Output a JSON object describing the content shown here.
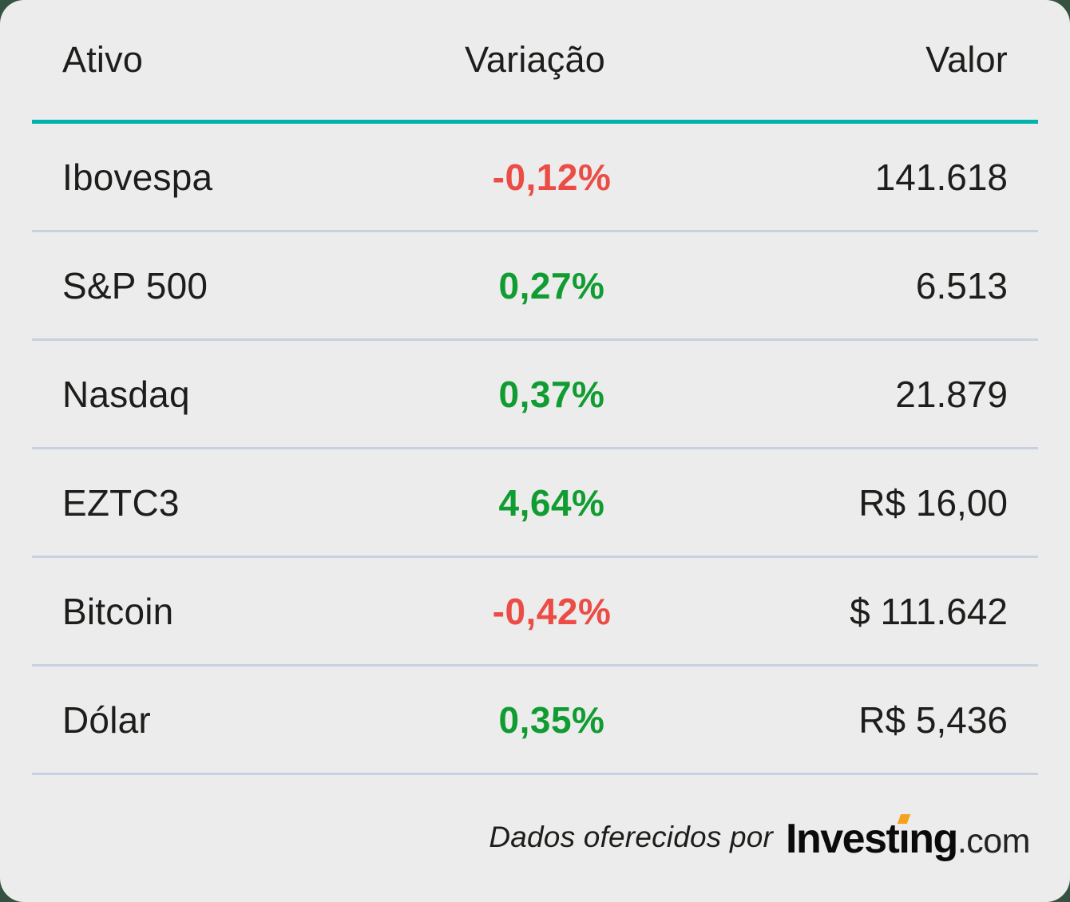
{
  "table": {
    "columns": [
      {
        "label": "Ativo"
      },
      {
        "label": "Variação"
      },
      {
        "label": "Valor"
      }
    ],
    "rows": [
      {
        "asset": "Ibovespa",
        "variation": "-0,12%",
        "direction": "down",
        "value": "141.618"
      },
      {
        "asset": "S&P 500",
        "variation": "0,27%",
        "direction": "up",
        "value": "6.513"
      },
      {
        "asset": "Nasdaq",
        "variation": "0,37%",
        "direction": "up",
        "value": "21.879"
      },
      {
        "asset": "EZTC3",
        "variation": "4,64%",
        "direction": "up",
        "value": "R$ 16,00"
      },
      {
        "asset": "Bitcoin",
        "variation": "-0,42%",
        "direction": "down",
        "value": "$ 111.642"
      },
      {
        "asset": "Dólar",
        "variation": "0,35%",
        "direction": "up",
        "value": "R$ 5,436"
      }
    ]
  },
  "footer": {
    "credit": "Dados oferecidos por",
    "logo": {
      "part1": "Invest",
      "dotless_i": "ı",
      "part2": "ng",
      "suffix": ".com"
    }
  },
  "colors": {
    "positive": "#119c31",
    "negative": "#eb4d46",
    "accent_teal": "#00b3ab",
    "logo_orange": "#f6a21d",
    "card_bg": "#ececec",
    "backdrop_green": "#355241",
    "separator": "#c8d1e0",
    "text": "#1d1d1b"
  }
}
